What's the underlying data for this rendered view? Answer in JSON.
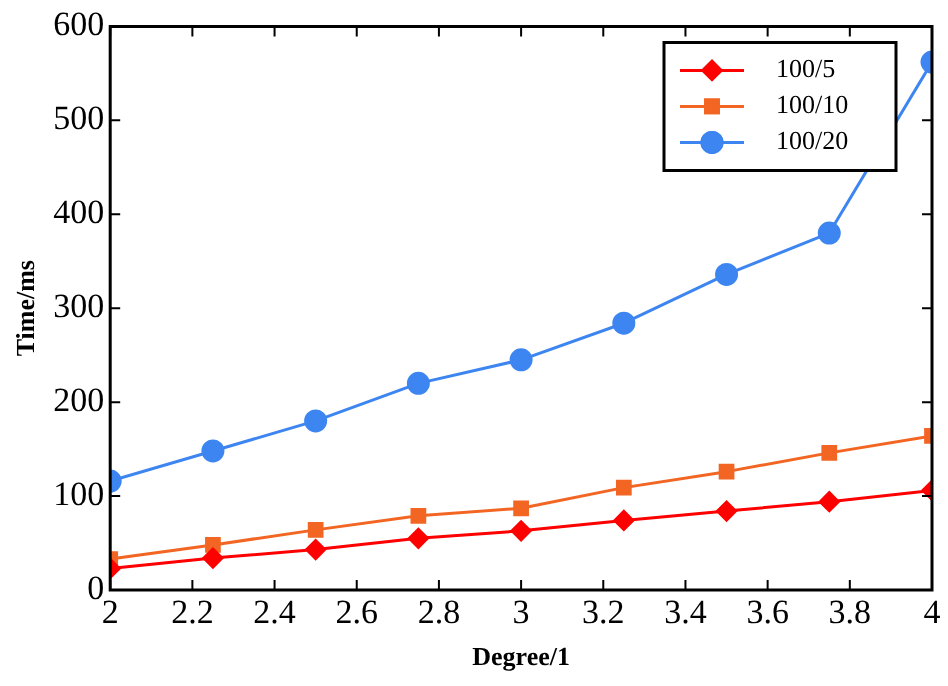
{
  "chart_data": {
    "type": "line",
    "xlabel": "Degree/1",
    "ylabel": "Time/ms",
    "xlim": [
      2,
      4
    ],
    "xticks": [
      2,
      2.2,
      2.4,
      2.6,
      2.8,
      3,
      3.2,
      3.4,
      3.6,
      3.8,
      4
    ],
    "ylim": [
      0,
      600
    ],
    "yticks": [
      0,
      100,
      200,
      300,
      400,
      500,
      600
    ],
    "x": [
      2,
      2.25,
      2.5,
      2.75,
      3,
      3.25,
      3.5,
      3.75,
      4
    ],
    "grid": false,
    "legend": "top right",
    "line_style": "solid",
    "series": [
      {
        "name": "100/5",
        "color": "#ff0000",
        "marker": "diamond",
        "values": [
          23,
          34,
          43,
          55,
          63,
          74,
          84,
          94,
          106
        ]
      },
      {
        "name": "100/10",
        "color": "#f26522",
        "marker": "square",
        "values": [
          33,
          48,
          64,
          79,
          87,
          109,
          126,
          146,
          164
        ]
      },
      {
        "name": "100/20",
        "color": "#3d85f0",
        "marker": "circle",
        "values": [
          116,
          148,
          180,
          220,
          245,
          284,
          336,
          380,
          562
        ]
      }
    ]
  }
}
